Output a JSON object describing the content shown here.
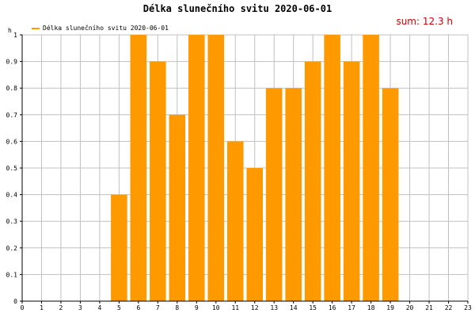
{
  "chart_data": {
    "type": "bar",
    "title": "Délka slunečního svitu 2020-06-01",
    "ylabel": "h",
    "xlabel": "",
    "sum_label": "sum: 12.3 h",
    "legend": [
      {
        "name": "Délka slunečního svitu 2020-06-01",
        "color": "#ff9900"
      }
    ],
    "legend_position": "top-left",
    "grid": true,
    "xlim": [
      0,
      23
    ],
    "ylim": [
      0,
      1
    ],
    "x_ticks": [
      0,
      1,
      2,
      3,
      4,
      5,
      6,
      7,
      8,
      9,
      10,
      11,
      12,
      13,
      14,
      15,
      16,
      17,
      18,
      19,
      20,
      21,
      22,
      23
    ],
    "y_ticks": [
      0,
      0.1,
      0.2,
      0.3,
      0.4,
      0.5,
      0.6,
      0.7,
      0.8,
      0.9,
      1
    ],
    "series": [
      {
        "name": "Délka slunečního svitu 2020-06-01",
        "color": "#ff9900",
        "x": [
          5,
          6,
          7,
          8,
          9,
          10,
          11,
          12,
          13,
          14,
          15,
          16,
          17,
          18,
          19
        ],
        "values": [
          0.4,
          1,
          0.9,
          0.7,
          1,
          1,
          0.6,
          0.5,
          0.8,
          0.8,
          0.9,
          1,
          0.9,
          1,
          0.8
        ]
      }
    ]
  }
}
